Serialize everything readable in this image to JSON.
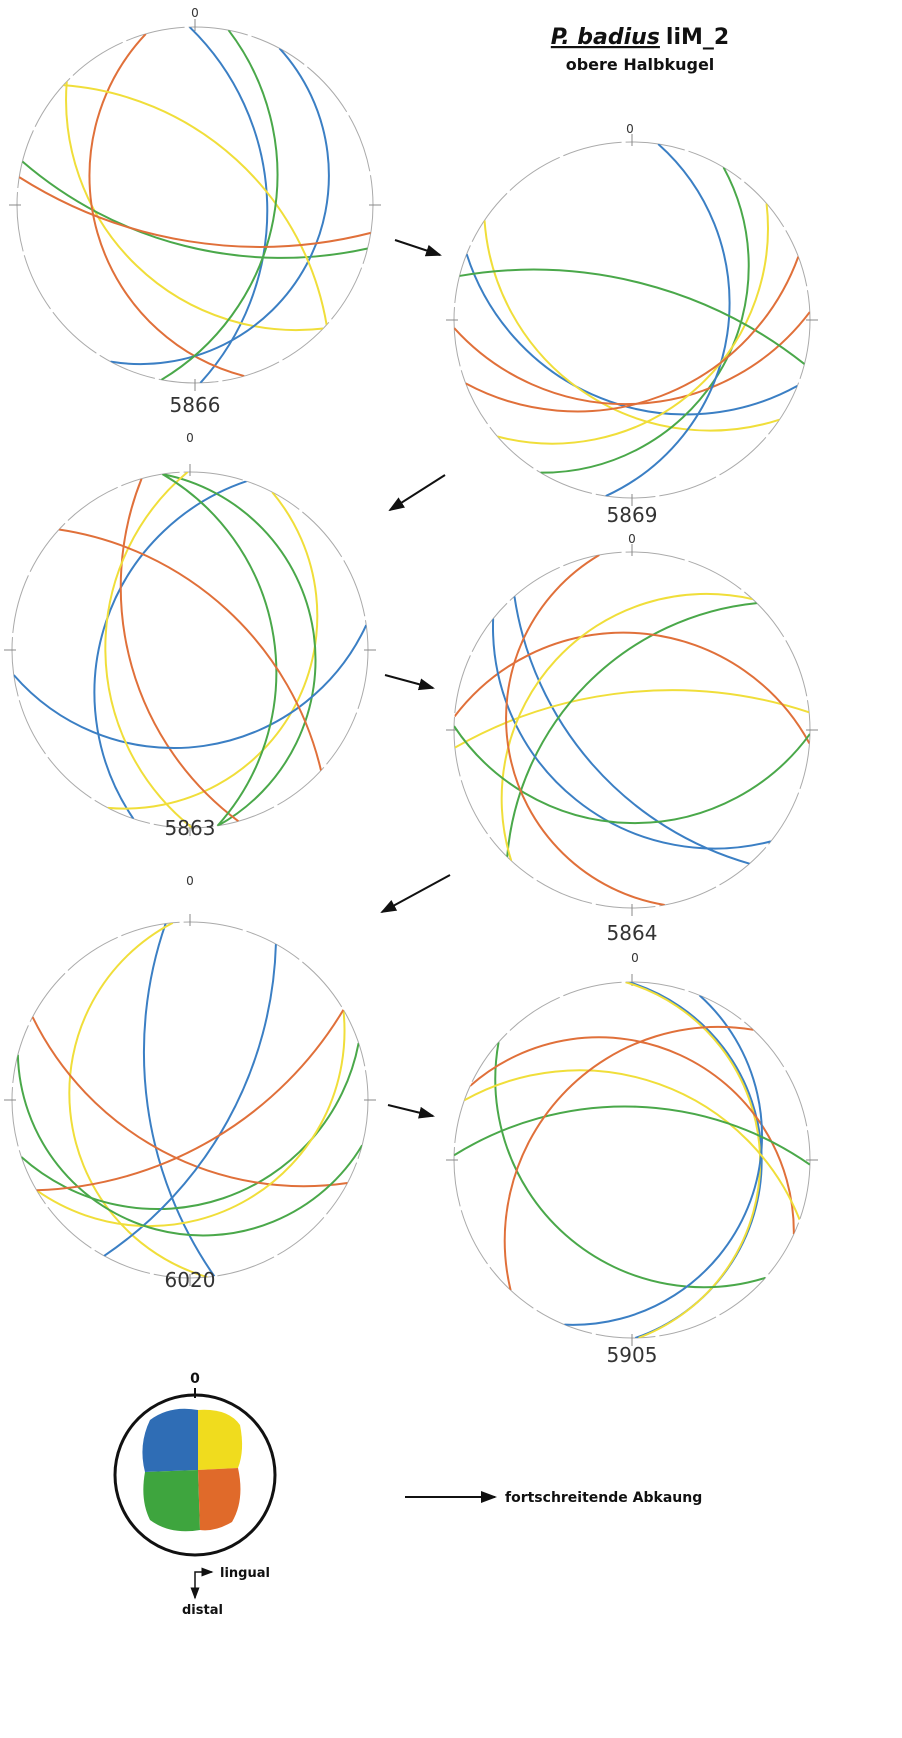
{
  "title": {
    "species": "P. badius",
    "suffix": "liM_2"
  },
  "subtitle": "obere Halbkugel",
  "nets": [
    {
      "north": "0",
      "label": "5866"
    },
    {
      "north": "0",
      "label": "5869"
    },
    {
      "north": "0",
      "label": "5863"
    },
    {
      "north": "0",
      "label": "5864"
    },
    {
      "north": "0",
      "label": "6020"
    },
    {
      "north": "0",
      "label": "5905"
    }
  ],
  "legend": {
    "north": "0",
    "lingual": "lingual",
    "distal": "distal",
    "progress": "fortschreitende Abkaung"
  }
}
